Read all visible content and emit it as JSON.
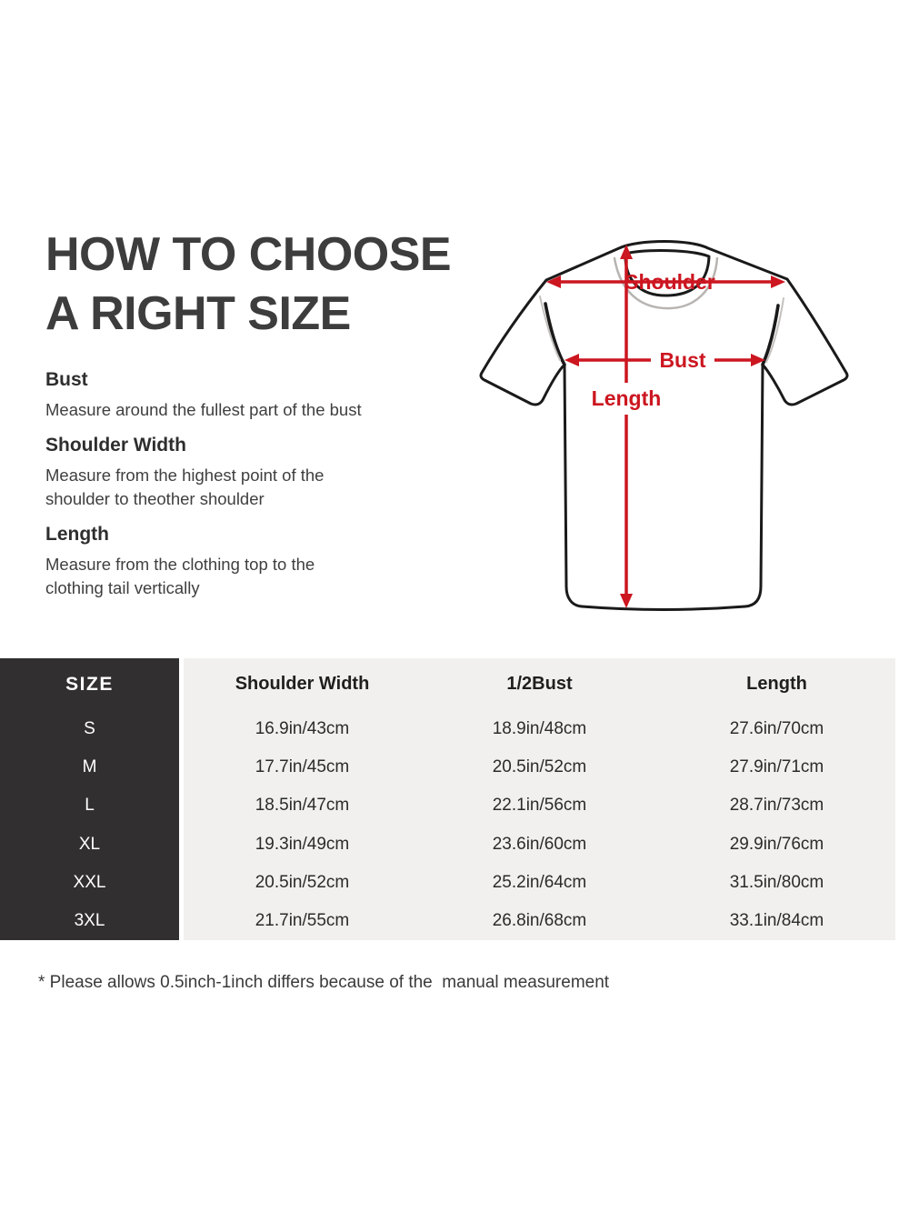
{
  "title": {
    "line1": "HOW TO CHOOSE",
    "line2": "A RIGHT SIZE"
  },
  "guide": {
    "sections": [
      {
        "heading": "Bust",
        "body": "Measure around the fullest part of the bust"
      },
      {
        "heading": "Shoulder Width",
        "body": "Measure from the highest point of the shoulder to theother shoulder"
      },
      {
        "heading": "Length",
        "body": "Measure from the clothing top to the clothing tail vertically"
      }
    ]
  },
  "diagram": {
    "labels": {
      "shoulder": "Shoulder",
      "bust": "Bust",
      "length": "Length"
    }
  },
  "size_table": {
    "columns": [
      "SIZE",
      "Shoulder Width",
      "1/2Bust",
      "Length"
    ],
    "rows": [
      {
        "size": "S",
        "shoulder": "16.9in/43cm",
        "bust": "18.9in/48cm",
        "length": "27.6in/70cm"
      },
      {
        "size": "M",
        "shoulder": "17.7in/45cm",
        "bust": "20.5in/52cm",
        "length": "27.9in/71cm"
      },
      {
        "size": "L",
        "shoulder": "18.5in/47cm",
        "bust": "22.1in/56cm",
        "length": "28.7in/73cm"
      },
      {
        "size": "XL",
        "shoulder": "19.3in/49cm",
        "bust": "23.6in/60cm",
        "length": "29.9in/76cm"
      },
      {
        "size": "XXL",
        "shoulder": "20.5in/52cm",
        "bust": "25.2in/64cm",
        "length": "31.5in/80cm"
      },
      {
        "size": "3XL",
        "shoulder": "21.7in/55cm",
        "bust": "26.8in/68cm",
        "length": "33.1in/84cm"
      }
    ]
  },
  "footnote": "* Please allows 0.5inch-1inch differs because of the  manual measurement",
  "colors": {
    "accent_red": "#cc1620",
    "heading_gray": "#3d3d3d",
    "table_dark": "#312f2f",
    "table_light": "#f1f0ee",
    "shirt_ink": "#1a1a1a"
  }
}
